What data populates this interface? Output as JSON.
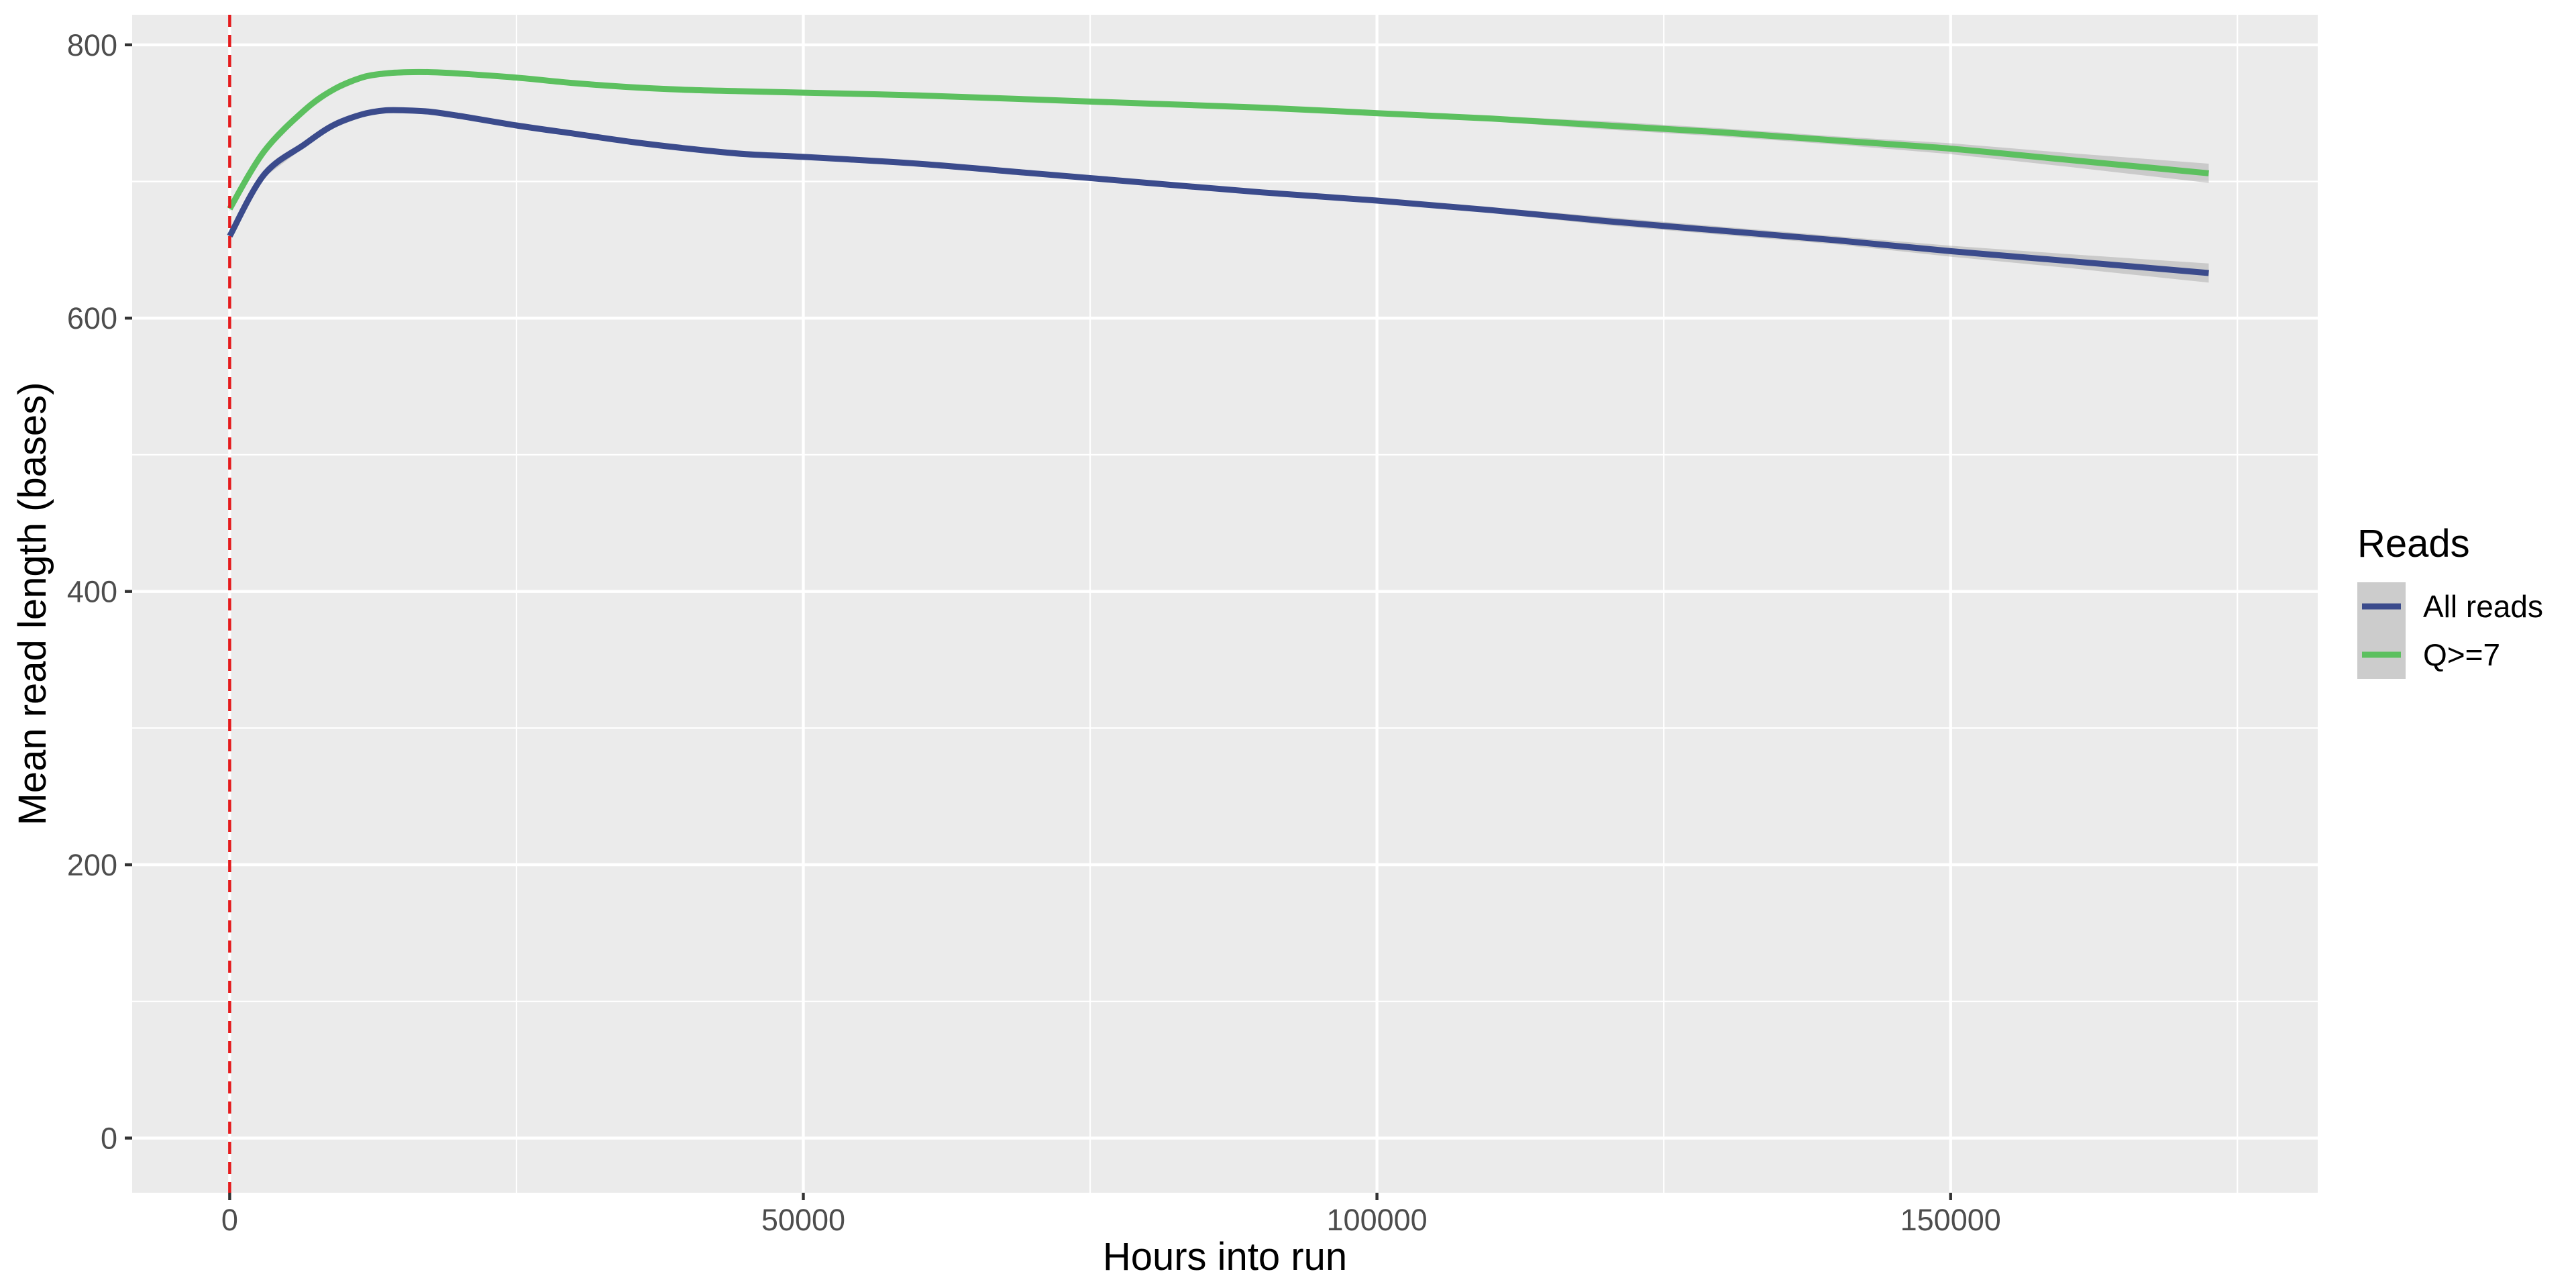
{
  "chart_data": {
    "type": "line",
    "title": "",
    "xlabel": "Hours into run",
    "ylabel": "Mean read length (bases)",
    "xlim": [
      -8500,
      182000
    ],
    "ylim": [
      -40,
      822
    ],
    "x_ticks": [
      0,
      50000,
      100000,
      150000
    ],
    "x_tick_labels": [
      "0",
      "50000",
      "100000",
      "150000"
    ],
    "y_ticks": [
      0,
      200,
      400,
      600,
      800
    ],
    "y_tick_labels": [
      "0",
      "200",
      "400",
      "600",
      "800"
    ],
    "grid": true,
    "panel_background": "#ebebeb",
    "vline": {
      "x": 0,
      "color": "#e41a1c",
      "style": "dashed"
    },
    "legend": {
      "title": "Reads",
      "position": "right",
      "entries": [
        "All reads",
        "Q>=7"
      ]
    },
    "series": [
      {
        "name": "All reads",
        "color": "#3b4b8c",
        "x": [
          0,
          3000,
          6500,
          9000,
          11500,
          13500,
          15500,
          17500,
          20000,
          25000,
          30000,
          35000,
          40000,
          45000,
          50000,
          60000,
          70000,
          80000,
          90000,
          100000,
          110000,
          120000,
          130000,
          140000,
          150000,
          160000,
          172500
        ],
        "y": [
          660,
          705,
          727,
          741,
          749,
          752,
          752,
          751,
          748,
          741,
          735,
          729,
          724,
          720,
          718,
          713,
          706,
          699,
          692,
          686,
          679,
          671,
          664,
          657,
          649,
          642,
          633
        ],
        "band_halfwidth": [
          2,
          2,
          2,
          2,
          2,
          2,
          2,
          2,
          2,
          2,
          2,
          2,
          2,
          2,
          2,
          2,
          2,
          2,
          2,
          2,
          2,
          3,
          3,
          3,
          4,
          5,
          7
        ]
      },
      {
        "name": "Q>=7",
        "color": "#5cc05f",
        "x": [
          0,
          3000,
          6500,
          9000,
          11500,
          13500,
          15500,
          17500,
          20000,
          25000,
          30000,
          35000,
          40000,
          45000,
          50000,
          60000,
          70000,
          80000,
          90000,
          100000,
          110000,
          120000,
          130000,
          140000,
          150000,
          160000,
          172500
        ],
        "y": [
          680,
          722,
          752,
          767,
          776,
          779,
          780,
          780,
          779,
          776,
          772,
          769,
          767,
          766,
          765,
          763,
          760,
          757,
          754,
          750,
          746,
          741,
          736,
          730,
          724,
          716,
          706
        ],
        "band_halfwidth": [
          2,
          2,
          2,
          2,
          2,
          2,
          2,
          2,
          2,
          2,
          2,
          2,
          2,
          2,
          2,
          2,
          2,
          2,
          2,
          2,
          2,
          3,
          3,
          3,
          4,
          5,
          7
        ]
      }
    ]
  }
}
